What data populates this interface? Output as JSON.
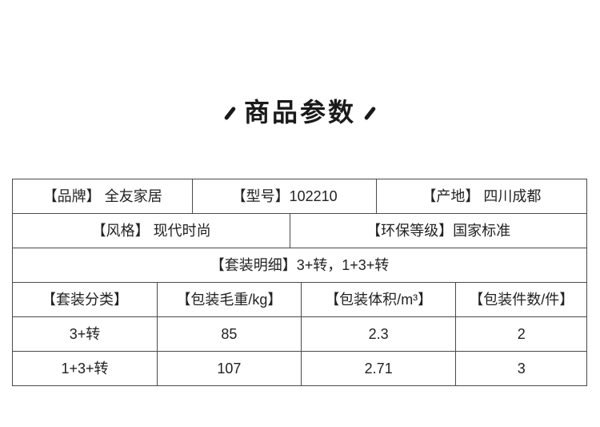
{
  "title": {
    "text": "商品参数"
  },
  "spec_table": {
    "row_basic": {
      "brand": "【品牌】 全友家居",
      "model": "【型号】102210",
      "origin": "【产地】 四川成都"
    },
    "row_style": {
      "style": "【风格】 现代时尚",
      "eco": "【环保等级】国家标准"
    },
    "row_set_detail": {
      "detail": "【套装明细】3+转，1+3+转"
    },
    "row_pack_header": {
      "set_type": "【套装分类】",
      "gross_weight": "【包装毛重/kg】",
      "volume": "【包装体积/m³】",
      "piece_count": "【包装件数/件】"
    },
    "row_pack_1": {
      "set_type": "3+转",
      "gross_weight": "85",
      "volume": "2.3",
      "piece_count": "2"
    },
    "row_pack_2": {
      "set_type": "1+3+转",
      "gross_weight": "107",
      "volume": "2.71",
      "piece_count": "3"
    }
  },
  "colors": {
    "background": "#ffffff",
    "text": "#222222",
    "title_text": "#1a1a1a",
    "table_border": "#4a4a4a"
  }
}
